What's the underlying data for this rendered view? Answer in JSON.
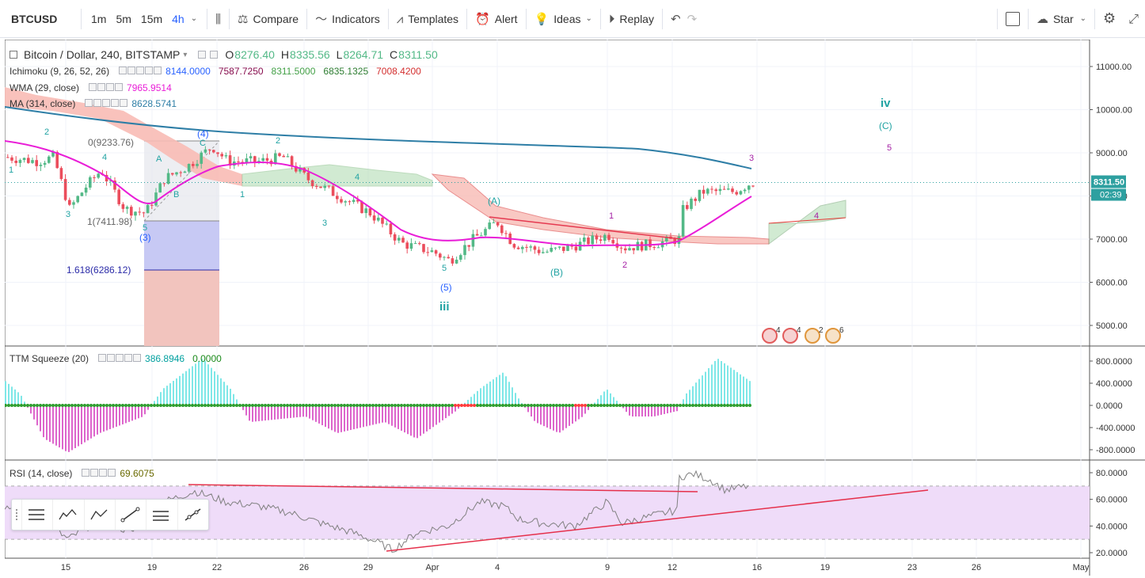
{
  "toolbar": {
    "symbol": "BTCUSD",
    "intervals": [
      "1m",
      "5m",
      "15m",
      "4h"
    ],
    "active_interval": "4h",
    "compare": "Compare",
    "indicators": "Indicators",
    "templates": "Templates",
    "alert": "Alert",
    "ideas": "Ideas",
    "replay": "Replay",
    "star": "Star"
  },
  "legend": {
    "title": "Bitcoin / Dollar, 240, BITSTAMP",
    "o_label": "O",
    "o": "8276.40",
    "h_label": "H",
    "h": "8335.56",
    "l_label": "L",
    "l": "8264.71",
    "c_label": "C",
    "c": "8311.50",
    "ichimoku": "Ichimoku (9, 26, 52, 26)",
    "ich_values": [
      "8144.0000",
      "7587.7250",
      "8311.5000",
      "6835.1325",
      "7008.4200"
    ],
    "wma": "WMA (29, close)",
    "wma_value": "7965.9514",
    "ma": "MA (314, close)",
    "ma_value": "8628.5741",
    "ttm": "TTM Squeeze (20)",
    "ttm_values": [
      "386.8946",
      "0.0000"
    ],
    "rsi": "RSI (14, close)",
    "rsi_value": "69.6075"
  },
  "price_axis": [
    "11000.00",
    "10000.00",
    "9000.00",
    "8000.00",
    "7000.00",
    "6000.00",
    "5000.00"
  ],
  "price_badge": "8311.50",
  "countdown_badge": "02:39",
  "ttm_axis": [
    "800.0000",
    "400.0000",
    "0.0000",
    "-400.0000",
    "-800.0000"
  ],
  "rsi_axis": [
    "80.0000",
    "60.0000",
    "40.0000",
    "20.0000"
  ],
  "time_axis": [
    "15",
    "19",
    "22",
    "26",
    "29",
    "Apr",
    "4",
    "9",
    "12",
    "16",
    "19",
    "23",
    "26",
    "May"
  ],
  "fib_labels": [
    "0(9233.76)",
    "1(7411.98)",
    "1.618(6286.12)"
  ],
  "wave_labels": {
    "iv": "iv",
    "C": "(C)",
    "five_purple": "5",
    "three_purple": "3",
    "iii": "iii",
    "five_paren": "(5)",
    "five": "5",
    "B_paren": "(B)",
    "A_paren": "(A)",
    "one_purple": "1",
    "two_purple": "2",
    "four_purple": "4",
    "one": "1",
    "two": "2",
    "three": "3",
    "four": "4",
    "four_paren": "(4)",
    "three_paren": "(3)",
    "A": "A",
    "B": "B",
    "C_small": "C"
  },
  "events": [
    "4",
    "4",
    "2",
    "6"
  ],
  "colors": {
    "up": "#53b987",
    "down": "#eb4d5c",
    "wma": "#e91ed7",
    "ma": "#2e7ea6",
    "kumo_bull": "#a5d6a7",
    "kumo_bear": "#f8bbb5",
    "rsi_band": "#efdcf9",
    "accent": "#2962ff",
    "teal_wave": "#21a3a3",
    "purple_wave": "#a41fa4"
  }
}
